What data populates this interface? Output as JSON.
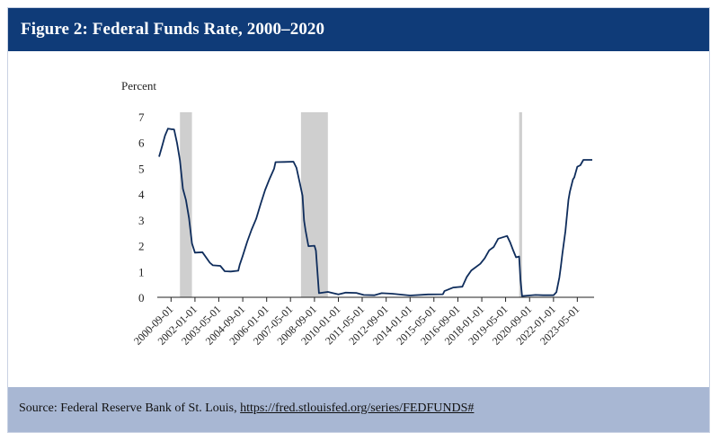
{
  "figure": {
    "title": "Figure 2: Federal Funds Rate, 2000–2020",
    "source_prefix": "Source: Federal Reserve Bank of St. Louis, ",
    "source_link": "https://fred.stlouisfed.org/series/FEDFUNDS#"
  },
  "colors": {
    "title_bar": "#0f3b78",
    "footer_bar": "#a8b7d3",
    "line": "#0f2d5c",
    "recession": "#cfcfcf"
  },
  "chart_data": {
    "type": "line",
    "title": "Figure 2: Federal Funds Rate, 2000–2020",
    "xlabel": "",
    "ylabel": "Percent",
    "ylim": [
      0,
      7
    ],
    "yticks": [
      0,
      1,
      2,
      3,
      4,
      5,
      6,
      7
    ],
    "xlim": [
      "2000-01-01",
      "2024-03-01"
    ],
    "xticks": [
      "2000-09-01",
      "2002-01-01",
      "2003-05-01",
      "2004-09-01",
      "2006-01-01",
      "2007-05-01",
      "2008-09-01",
      "2010-01-01",
      "2011-05-01",
      "2012-09-01",
      "2014-01-01",
      "2015-05-01",
      "2016-09-01",
      "2018-01-01",
      "2019-05-01",
      "2020-09-01",
      "2022-01-01",
      "2023-05-01"
    ],
    "grid": false,
    "legend": "none",
    "recessions": [
      {
        "start": "2001-03-01",
        "end": "2001-11-01"
      },
      {
        "start": "2007-12-01",
        "end": "2009-06-01"
      },
      {
        "start": "2020-02-01",
        "end": "2020-04-01"
      }
    ],
    "series": [
      {
        "x": [
          "2000-01-01",
          "2000-03-01",
          "2000-05-01",
          "2000-07-01",
          "2000-09-01",
          "2000-11-01",
          "2001-01-01",
          "2001-03-01",
          "2001-05-01",
          "2001-07-01",
          "2001-09-01",
          "2001-11-01",
          "2002-01-01",
          "2002-06-01",
          "2002-11-01",
          "2003-01-01",
          "2003-06-01",
          "2003-09-01",
          "2004-01-01",
          "2004-06-01",
          "2004-07-01",
          "2004-09-01",
          "2004-12-01",
          "2005-03-01",
          "2005-06-01",
          "2005-09-01",
          "2005-12-01",
          "2006-03-01",
          "2006-06-01",
          "2006-07-01",
          "2007-01-01",
          "2007-07-01",
          "2007-09-01",
          "2007-11-01",
          "2008-01-01",
          "2008-02-01",
          "2008-03-01",
          "2008-05-01",
          "2008-09-01",
          "2008-10-01",
          "2008-12-01",
          "2009-06-01",
          "2010-01-01",
          "2010-06-01",
          "2011-01-01",
          "2011-06-01",
          "2012-01-01",
          "2012-06-01",
          "2013-01-01",
          "2014-01-01",
          "2015-01-01",
          "2015-11-01",
          "2015-12-01",
          "2016-06-01",
          "2016-12-01",
          "2017-03-01",
          "2017-06-01",
          "2017-12-01",
          "2018-03-01",
          "2018-06-01",
          "2018-09-01",
          "2018-12-01",
          "2019-06-01",
          "2019-08-01",
          "2019-10-01",
          "2019-12-01",
          "2020-02-01",
          "2020-03-01",
          "2020-04-01",
          "2021-01-01",
          "2021-06-01",
          "2022-01-01",
          "2022-03-01",
          "2022-05-01",
          "2022-06-01",
          "2022-07-01",
          "2022-09-01",
          "2022-11-01",
          "2022-12-01",
          "2023-02-01",
          "2023-03-01",
          "2023-05-01",
          "2023-07-01",
          "2023-09-01",
          "2024-03-01"
        ],
        "y": [
          5.45,
          5.85,
          6.27,
          6.54,
          6.52,
          6.51,
          5.98,
          5.31,
          4.21,
          3.77,
          3.07,
          2.09,
          1.73,
          1.75,
          1.34,
          1.24,
          1.22,
          1.01,
          1.0,
          1.03,
          1.26,
          1.61,
          2.16,
          2.63,
          3.04,
          3.62,
          4.16,
          4.59,
          4.99,
          5.24,
          5.25,
          5.26,
          5.02,
          4.49,
          3.94,
          2.98,
          2.61,
          1.98,
          2.0,
          1.81,
          0.16,
          0.21,
          0.11,
          0.18,
          0.17,
          0.09,
          0.08,
          0.16,
          0.14,
          0.07,
          0.11,
          0.12,
          0.24,
          0.38,
          0.41,
          0.79,
          1.04,
          1.3,
          1.51,
          1.82,
          1.95,
          2.27,
          2.38,
          2.13,
          1.83,
          1.55,
          1.58,
          0.65,
          0.05,
          0.09,
          0.08,
          0.08,
          0.2,
          0.77,
          1.21,
          1.68,
          2.56,
          3.78,
          4.1,
          4.57,
          4.65,
          5.06,
          5.12,
          5.33,
          5.33
        ]
      }
    ]
  }
}
